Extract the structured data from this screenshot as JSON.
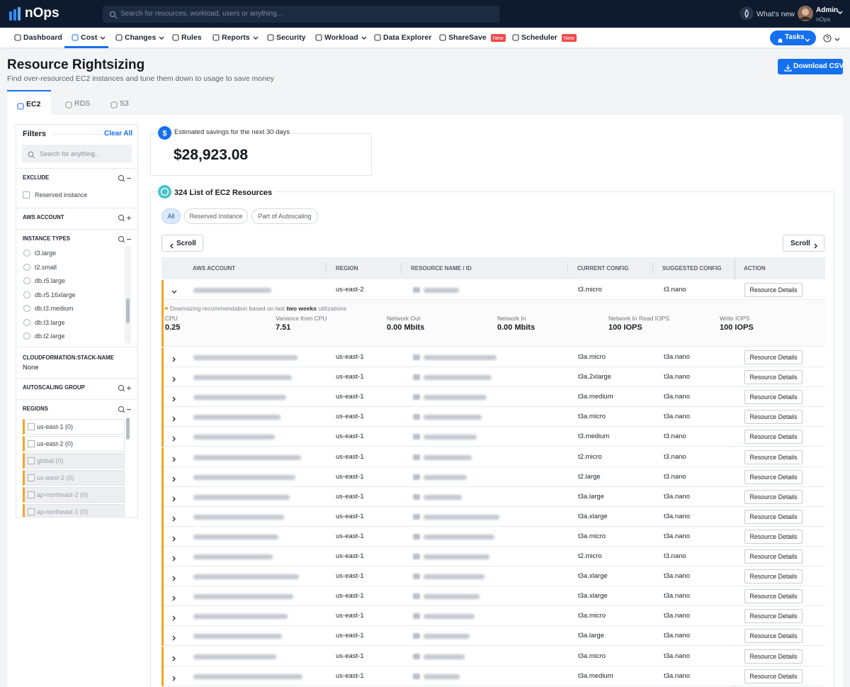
{
  "topbar": {
    "logo": "nOps",
    "search_placeholder": "Search for resources, workload, users or anything...",
    "whats_new": "What's new",
    "user_name": "Admin",
    "user_org": "nOps"
  },
  "nav": {
    "items": [
      {
        "label": "Dashboard"
      },
      {
        "label": "Cost",
        "dropdown": true,
        "active": true
      },
      {
        "label": "Changes",
        "dropdown": true
      },
      {
        "label": "Rules"
      },
      {
        "label": "Reports",
        "dropdown": true
      },
      {
        "label": "Security"
      },
      {
        "label": "Workload",
        "dropdown": true
      },
      {
        "label": "Data Explorer"
      },
      {
        "label": "ShareSave",
        "badge": "New"
      },
      {
        "label": "Scheduler",
        "badge": "New"
      }
    ],
    "tasks": "Tasks"
  },
  "header": {
    "title": "Resource Rightsizing",
    "subtitle": "Find over-resourced EC2 instances and tune them down to usage to save money",
    "download": "Download CSV"
  },
  "tabs": [
    {
      "label": "EC2",
      "active": true
    },
    {
      "label": "RDS"
    },
    {
      "label": "S3"
    }
  ],
  "filters": {
    "title": "Filters",
    "clear": "Clear All",
    "search_placeholder": "Search for anything..",
    "sections": [
      {
        "title": "EXCLUDE",
        "options": [
          "Reserved instance"
        ]
      },
      {
        "title": "AWS ACCOUNT"
      },
      {
        "title": "INSTANCE TYPES",
        "options": [
          "t3.large",
          "t2.small",
          "db.r5.large",
          "db.r5.16xlarge",
          "db.t3.medium",
          "db.t3.large",
          "db.t2.large"
        ]
      },
      {
        "title": "CLOUDFORMATION:STACK-NAME",
        "value": "None"
      },
      {
        "title": "AUTOSCALING GROUP"
      },
      {
        "title": "REGIONS",
        "options": [
          "us-east-1 (0)",
          "us-east-2 (0)",
          "global (0)",
          "us-west-2 (0)",
          "ap-northeast-2 (0)",
          "ap-northeast-1 (0)"
        ]
      }
    ]
  },
  "savings": {
    "label": "Estimated savings for the next 30 days",
    "value": "$28,923.08"
  },
  "resources": {
    "title": "324 List of EC2 Resources",
    "filters": [
      "All",
      "Reserved Instance",
      "Part of Autoscaling"
    ],
    "scroll": "Scroll",
    "columns": [
      "AWS ACCOUNT",
      "REGION",
      "RESOURCE NAME / ID",
      "CURRENT CONFIG",
      "SUGGESTED CONFIG",
      "ACTION"
    ],
    "action_label": "Resource Details",
    "expanded": {
      "note_before": "Downsizing recommendation based on last",
      "note_emphasis": "two weeks",
      "note_after": "utilizations",
      "metrics": [
        {
          "label": "CPU",
          "value": "0.25"
        },
        {
          "label": "Variance from CPU",
          "value": "7.51"
        },
        {
          "label": "Network Out",
          "value": "0.00 Mbits"
        },
        {
          "label": "Network In",
          "value": "0.00 Mbits"
        },
        {
          "label": "Network In Read IOPS",
          "value": "100 IOPS"
        },
        {
          "label": "Write IOPS",
          "value": "100 IOPS"
        }
      ]
    },
    "rows": [
      {
        "region": "us-east-2",
        "current": "t3.micro",
        "suggested": "t3.nano"
      },
      {
        "region": "us-east-1",
        "current": "t3a.micro",
        "suggested": "t3a.nano"
      },
      {
        "region": "us-east-1",
        "current": "t3a.2xlarge",
        "suggested": "t3a.nano"
      },
      {
        "region": "us-east-1",
        "current": "t3a.medium",
        "suggested": "t3a.nano"
      },
      {
        "region": "us-east-1",
        "current": "t3a.micro",
        "suggested": "t3a.nano"
      },
      {
        "region": "us-east-1",
        "current": "t3.medium",
        "suggested": "t3.nano"
      },
      {
        "region": "us-east-1",
        "current": "t2.micro",
        "suggested": "t3.nano"
      },
      {
        "region": "us-east-1",
        "current": "t2.large",
        "suggested": "t3.nano"
      },
      {
        "region": "us-east-1",
        "current": "t3a.large",
        "suggested": "t3a.nano"
      },
      {
        "region": "us-east-1",
        "current": "t3a.xlarge",
        "suggested": "t3a.nano"
      },
      {
        "region": "us-east-1",
        "current": "t3a.micro",
        "suggested": "t3a.nano"
      },
      {
        "region": "us-east-1",
        "current": "t2.micro",
        "suggested": "t3.nano"
      },
      {
        "region": "us-east-1",
        "current": "t3a.xlarge",
        "suggested": "t3a.nano"
      },
      {
        "region": "us-east-1",
        "current": "t3a.xlarge",
        "suggested": "t3a.nano"
      },
      {
        "region": "us-east-1",
        "current": "t3a.micro",
        "suggested": "t3a.nano"
      },
      {
        "region": "us-east-1",
        "current": "t3a.large",
        "suggested": "t3a.nano"
      },
      {
        "region": "us-east-1",
        "current": "t3a.micro",
        "suggested": "t3a.nano"
      },
      {
        "region": "us-east-1",
        "current": "t3a.medium",
        "suggested": "t3a.nano"
      }
    ]
  }
}
